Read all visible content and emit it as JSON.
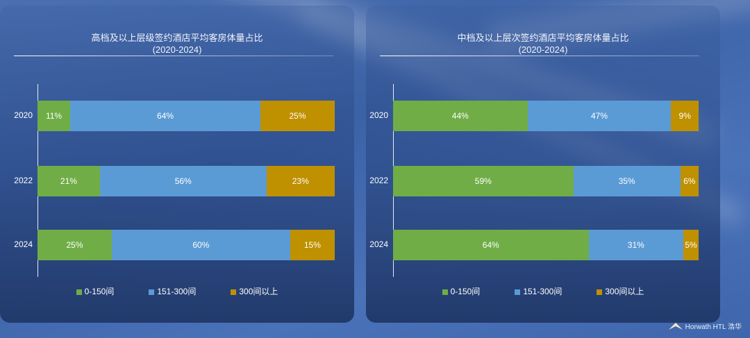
{
  "colors": {
    "low": "#70ad47",
    "mid": "#5b9bd5",
    "high": "#bf9000"
  },
  "logo": "Horwath HTL 浩华",
  "chart_data": [
    {
      "type": "bar",
      "stacked": "horizontal-100%",
      "title": "高档及以上层级签约酒店平均客房体量占比",
      "subtitle": "(2020-2024)",
      "categories": [
        "2020",
        "2022",
        "2024"
      ],
      "series": [
        {
          "name": "0-150间",
          "values": [
            11,
            21,
            25
          ]
        },
        {
          "name": "151-300间",
          "values": [
            64,
            56,
            60
          ]
        },
        {
          "name": "300间以上",
          "values": [
            25,
            23,
            15
          ]
        }
      ],
      "labels": [
        [
          "11%",
          "64%",
          "25%"
        ],
        [
          "21%",
          "56%",
          "23%"
        ],
        [
          "25%",
          "60%",
          "15%"
        ]
      ],
      "legend": "bottom"
    },
    {
      "type": "bar",
      "stacked": "horizontal-100%",
      "title": "中档及以上层次签约酒店平均客房体量占比",
      "subtitle": "(2020-2024)",
      "categories": [
        "2020",
        "2022",
        "2024"
      ],
      "series": [
        {
          "name": "0-150间",
          "values": [
            44,
            59,
            64
          ]
        },
        {
          "name": "151-300间",
          "values": [
            47,
            35,
            31
          ]
        },
        {
          "name": "300间以上",
          "values": [
            9,
            6,
            5
          ]
        }
      ],
      "labels": [
        [
          "44%",
          "47%",
          "9%"
        ],
        [
          "59%",
          "35%",
          "6%"
        ],
        [
          "64%",
          "31%",
          "5%"
        ]
      ],
      "legend": "bottom"
    }
  ]
}
